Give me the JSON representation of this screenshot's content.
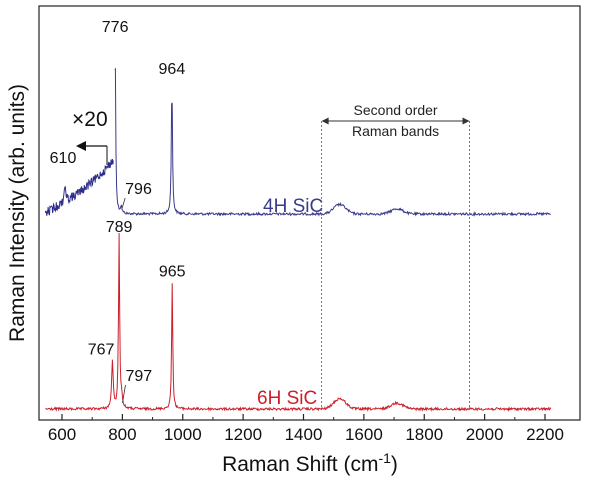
{
  "chart_data": {
    "type": "line",
    "xlabel": "Raman Shift (cm",
    "xlabel_sup": "-1",
    "xlabel_tail": ")",
    "ylabel": "Raman Intensity (arb. units)",
    "xlim": [
      540,
      2230
    ],
    "xticks": [
      600,
      800,
      1000,
      1200,
      1400,
      1600,
      1800,
      2000,
      2200
    ],
    "xtick_labels": [
      "600",
      "800",
      "1000",
      "1200",
      "1400",
      "1600",
      "1800",
      "2000",
      "2200"
    ],
    "grid": false,
    "series": [
      {
        "name": "4H SiC",
        "color": "#3a3a8c",
        "x_range": [
          775,
          2220
        ],
        "baseline": 0.0,
        "peaks": [
          {
            "x": 776,
            "height": 1.0,
            "label": "776"
          },
          {
            "x": 796,
            "height": 0.04,
            "label": "796"
          },
          {
            "x": 964,
            "height": 0.77,
            "label": "964"
          }
        ],
        "second_order_bumps": [
          {
            "x": 1520,
            "height": 0.055
          },
          {
            "x": 1710,
            "height": 0.03
          }
        ]
      },
      {
        "name": "6H SiC",
        "color": "#cc1f2a",
        "x_range": [
          545,
          2220
        ],
        "baseline": 0.0,
        "peaks": [
          {
            "x": 767,
            "height": 0.28,
            "label": "767"
          },
          {
            "x": 789,
            "height": 1.0,
            "label": "789"
          },
          {
            "x": 797,
            "height": 0.06,
            "label": "797"
          },
          {
            "x": 965,
            "height": 0.73,
            "label": "965"
          }
        ],
        "second_order_bumps": [
          {
            "x": 1520,
            "height": 0.06
          },
          {
            "x": 1710,
            "height": 0.035
          }
        ]
      }
    ],
    "inset_magnified": {
      "series": "4H SiC",
      "multiplier": "×20",
      "x_range": [
        545,
        770
      ],
      "peak": {
        "x": 610,
        "label": "610"
      }
    },
    "annotation": {
      "text_line1": "Second order",
      "text_line2": "Raman bands",
      "x_start": 1460,
      "x_end": 1950
    }
  }
}
